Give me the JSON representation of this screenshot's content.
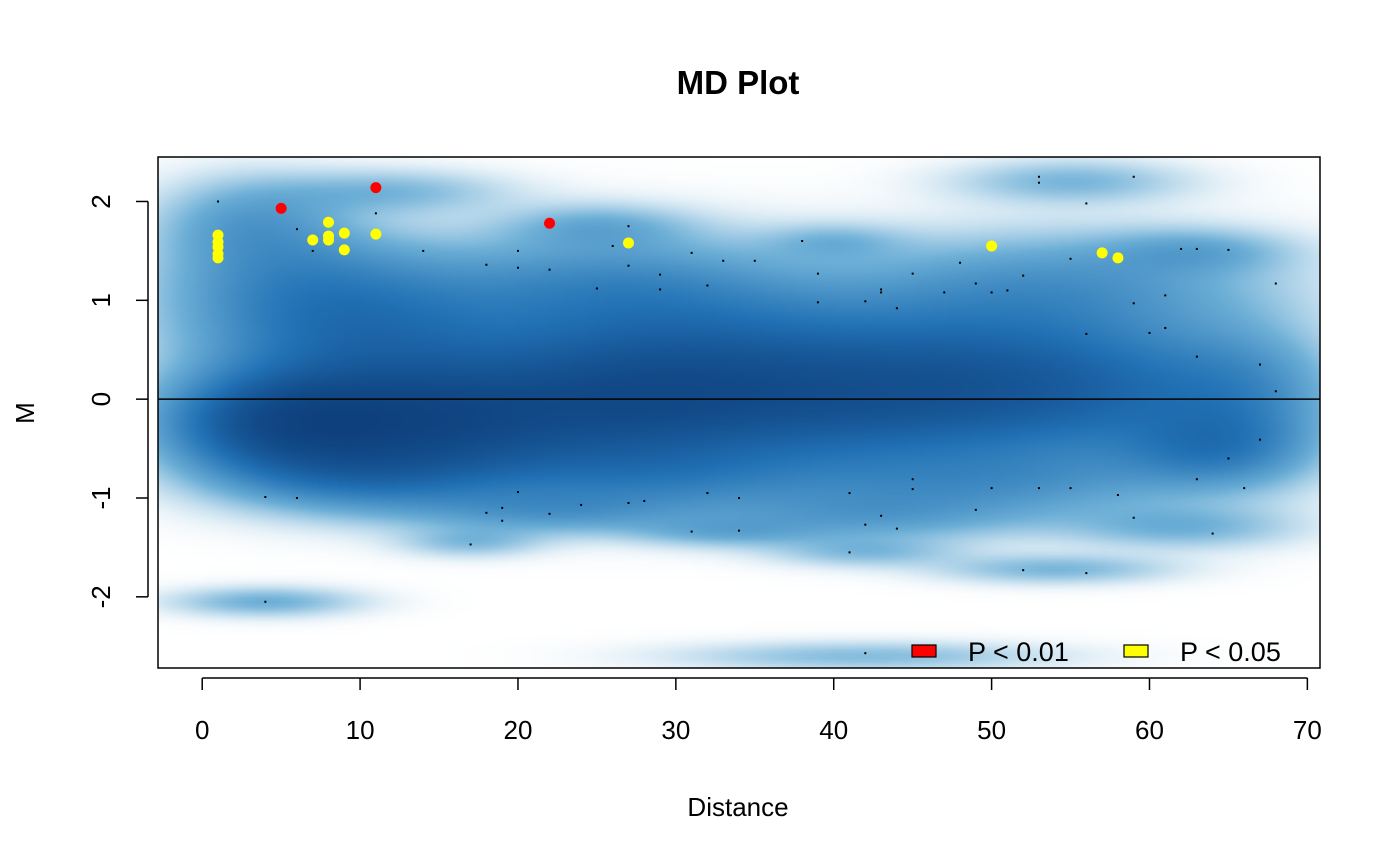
{
  "chart_data": {
    "type": "scatter",
    "title": "MD Plot",
    "xlabel": "Distance",
    "ylabel": "M",
    "xlim": [
      -2.8,
      70.8
    ],
    "ylim": [
      -2.72,
      2.45
    ],
    "x_ticks": [
      0,
      10,
      20,
      30,
      40,
      50,
      60,
      70
    ],
    "y_ticks": [
      -2,
      -1,
      0,
      1,
      2
    ],
    "reference_line": {
      "y": 0,
      "color": "#000000"
    },
    "density": {
      "color_ramp": [
        "#ffffff",
        "#6baed6",
        "#2171b5",
        "#08306b"
      ],
      "blobs": [
        {
          "x": 5,
          "y": -0.25,
          "sx": 5,
          "sy": 0.35,
          "w": 1.0
        },
        {
          "x": 14,
          "y": -0.25,
          "sx": 6,
          "sy": 0.4,
          "w": 0.95
        },
        {
          "x": 26,
          "y": -0.1,
          "sx": 7,
          "sy": 0.45,
          "w": 0.8
        },
        {
          "x": 40,
          "y": -0.05,
          "sx": 8,
          "sy": 0.45,
          "w": 0.7
        },
        {
          "x": 55,
          "y": 0.0,
          "sx": 8,
          "sy": 0.45,
          "w": 0.55
        },
        {
          "x": 66,
          "y": 0.0,
          "sx": 4,
          "sy": 0.5,
          "w": 0.3
        },
        {
          "x": 10,
          "y": 0.6,
          "sx": 7,
          "sy": 0.45,
          "w": 0.55
        },
        {
          "x": 30,
          "y": 0.55,
          "sx": 9,
          "sy": 0.5,
          "w": 0.5
        },
        {
          "x": 50,
          "y": 0.5,
          "sx": 9,
          "sy": 0.5,
          "w": 0.4
        },
        {
          "x": 6,
          "y": 1.2,
          "sx": 6,
          "sy": 0.4,
          "w": 0.35
        },
        {
          "x": 25,
          "y": 1.2,
          "sx": 8,
          "sy": 0.35,
          "w": 0.3
        },
        {
          "x": 55,
          "y": 1.2,
          "sx": 9,
          "sy": 0.35,
          "w": 0.28
        },
        {
          "x": 3,
          "y": 1.8,
          "sx": 4,
          "sy": 0.3,
          "w": 0.28
        },
        {
          "x": 12,
          "y": 2.1,
          "sx": 5,
          "sy": 0.15,
          "w": 0.2
        },
        {
          "x": 25,
          "y": 1.75,
          "sx": 4,
          "sy": 0.15,
          "w": 0.2
        },
        {
          "x": 55,
          "y": 2.2,
          "sx": 5,
          "sy": 0.15,
          "w": 0.22
        },
        {
          "x": 63,
          "y": 1.5,
          "sx": 4,
          "sy": 0.15,
          "w": 0.2
        },
        {
          "x": 40,
          "y": 1.6,
          "sx": 3,
          "sy": 0.12,
          "w": 0.15
        },
        {
          "x": 10,
          "y": -0.8,
          "sx": 6,
          "sy": 0.25,
          "w": 0.35
        },
        {
          "x": 28,
          "y": -0.8,
          "sx": 8,
          "sy": 0.25,
          "w": 0.3
        },
        {
          "x": 50,
          "y": -0.85,
          "sx": 9,
          "sy": 0.25,
          "w": 0.3
        },
        {
          "x": 22,
          "y": -1.15,
          "sx": 6,
          "sy": 0.15,
          "w": 0.25
        },
        {
          "x": 42,
          "y": -1.2,
          "sx": 7,
          "sy": 0.18,
          "w": 0.25
        },
        {
          "x": 62,
          "y": -1.3,
          "sx": 5,
          "sy": 0.15,
          "w": 0.22
        },
        {
          "x": 17,
          "y": -1.45,
          "sx": 3,
          "sy": 0.1,
          "w": 0.18
        },
        {
          "x": 33,
          "y": -1.35,
          "sx": 4,
          "sy": 0.1,
          "w": 0.18
        },
        {
          "x": 42,
          "y": -1.55,
          "sx": 4,
          "sy": 0.1,
          "w": 0.18
        },
        {
          "x": 54,
          "y": -1.72,
          "sx": 5,
          "sy": 0.1,
          "w": 0.22
        },
        {
          "x": 4,
          "y": -2.05,
          "sx": 4,
          "sy": 0.1,
          "w": 0.25
        },
        {
          "x": 42,
          "y": -2.6,
          "sx": 8,
          "sy": 0.1,
          "w": 0.2
        },
        {
          "x": 64,
          "y": -0.5,
          "sx": 4,
          "sy": 0.25,
          "w": 0.35
        }
      ]
    },
    "series": [
      {
        "name": "P < 0.01",
        "color": "#ff0000",
        "points": [
          {
            "x": 5,
            "y": 1.93
          },
          {
            "x": 11,
            "y": 2.14
          },
          {
            "x": 22,
            "y": 1.78
          }
        ]
      },
      {
        "name": "P < 0.05",
        "color": "#ffff00",
        "points": [
          {
            "x": 1,
            "y": 1.66
          },
          {
            "x": 1,
            "y": 1.59
          },
          {
            "x": 1,
            "y": 1.54
          },
          {
            "x": 1,
            "y": 1.47
          },
          {
            "x": 1,
            "y": 1.43
          },
          {
            "x": 7,
            "y": 1.61
          },
          {
            "x": 8,
            "y": 1.79
          },
          {
            "x": 8,
            "y": 1.65
          },
          {
            "x": 8,
            "y": 1.61
          },
          {
            "x": 9,
            "y": 1.68
          },
          {
            "x": 9,
            "y": 1.51
          },
          {
            "x": 11,
            "y": 1.67
          },
          {
            "x": 27,
            "y": 1.58
          },
          {
            "x": 50,
            "y": 1.55
          },
          {
            "x": 57,
            "y": 1.48
          },
          {
            "x": 58,
            "y": 1.43
          }
        ]
      }
    ],
    "background_points": [
      {
        "x": 1,
        "y": 2.0
      },
      {
        "x": 6,
        "y": 1.72
      },
      {
        "x": 7,
        "y": 1.5
      },
      {
        "x": 11,
        "y": 1.88
      },
      {
        "x": 14,
        "y": 1.5
      },
      {
        "x": 18,
        "y": 1.36
      },
      {
        "x": 20,
        "y": 1.5
      },
      {
        "x": 20,
        "y": 1.33
      },
      {
        "x": 22,
        "y": 1.31
      },
      {
        "x": 25,
        "y": 1.12
      },
      {
        "x": 26,
        "y": 1.55
      },
      {
        "x": 27,
        "y": 1.75
      },
      {
        "x": 27,
        "y": 1.35
      },
      {
        "x": 29,
        "y": 1.26
      },
      {
        "x": 29,
        "y": 1.11
      },
      {
        "x": 31,
        "y": 1.48
      },
      {
        "x": 32,
        "y": 1.15
      },
      {
        "x": 33,
        "y": 1.4
      },
      {
        "x": 35,
        "y": 1.4
      },
      {
        "x": 38,
        "y": 1.6
      },
      {
        "x": 39,
        "y": 1.27
      },
      {
        "x": 39,
        "y": 0.98
      },
      {
        "x": 42,
        "y": 0.99
      },
      {
        "x": 43,
        "y": 1.11
      },
      {
        "x": 43,
        "y": 1.08
      },
      {
        "x": 44,
        "y": 0.92
      },
      {
        "x": 45,
        "y": 1.27
      },
      {
        "x": 47,
        "y": 1.08
      },
      {
        "x": 48,
        "y": 1.38
      },
      {
        "x": 49,
        "y": 1.17
      },
      {
        "x": 50,
        "y": 1.08
      },
      {
        "x": 51,
        "y": 1.1
      },
      {
        "x": 52,
        "y": 1.25
      },
      {
        "x": 53,
        "y": 2.25
      },
      {
        "x": 53,
        "y": 2.19
      },
      {
        "x": 55,
        "y": 1.42
      },
      {
        "x": 56,
        "y": 1.98
      },
      {
        "x": 56,
        "y": 0.66
      },
      {
        "x": 59,
        "y": 2.25
      },
      {
        "x": 59,
        "y": 0.97
      },
      {
        "x": 60,
        "y": 0.67
      },
      {
        "x": 61,
        "y": 1.05
      },
      {
        "x": 61,
        "y": 0.72
      },
      {
        "x": 62,
        "y": 1.52
      },
      {
        "x": 63,
        "y": 1.52
      },
      {
        "x": 63,
        "y": 0.43
      },
      {
        "x": 65,
        "y": 1.51
      },
      {
        "x": 67,
        "y": 0.35
      },
      {
        "x": 68,
        "y": 1.17
      },
      {
        "x": 68,
        "y": 0.08
      },
      {
        "x": 67,
        "y": -0.41
      },
      {
        "x": 65,
        "y": -0.6
      },
      {
        "x": 66,
        "y": -0.9
      },
      {
        "x": 63,
        "y": -0.81
      },
      {
        "x": 64,
        "y": -1.36
      },
      {
        "x": 59,
        "y": -1.2
      },
      {
        "x": 58,
        "y": -0.97
      },
      {
        "x": 56,
        "y": -1.76
      },
      {
        "x": 55,
        "y": -0.9
      },
      {
        "x": 53,
        "y": -0.9
      },
      {
        "x": 52,
        "y": -1.73
      },
      {
        "x": 50,
        "y": -0.9
      },
      {
        "x": 49,
        "y": -1.12
      },
      {
        "x": 45,
        "y": -0.81
      },
      {
        "x": 45,
        "y": -0.91
      },
      {
        "x": 44,
        "y": -1.31
      },
      {
        "x": 43,
        "y": -1.18
      },
      {
        "x": 42,
        "y": -1.27
      },
      {
        "x": 41,
        "y": -0.95
      },
      {
        "x": 41,
        "y": -1.55
      },
      {
        "x": 42,
        "y": -2.57
      },
      {
        "x": 34,
        "y": -1.0
      },
      {
        "x": 34,
        "y": -1.33
      },
      {
        "x": 32,
        "y": -0.95
      },
      {
        "x": 31,
        "y": -1.34
      },
      {
        "x": 28,
        "y": -1.03
      },
      {
        "x": 27,
        "y": -1.05
      },
      {
        "x": 24,
        "y": -1.07
      },
      {
        "x": 22,
        "y": -1.16
      },
      {
        "x": 20,
        "y": -0.94
      },
      {
        "x": 19,
        "y": -1.1
      },
      {
        "x": 19,
        "y": -1.23
      },
      {
        "x": 18,
        "y": -1.15
      },
      {
        "x": 17,
        "y": -1.47
      },
      {
        "x": 6,
        "y": -1.0
      },
      {
        "x": 4,
        "y": -0.99
      },
      {
        "x": 4,
        "y": -2.05
      }
    ],
    "legend": {
      "placement": "bottom-right",
      "entries": [
        {
          "label": "P < 0.01",
          "color": "#ff0000"
        },
        {
          "label": "P < 0.05",
          "color": "#ffff00"
        }
      ]
    }
  }
}
